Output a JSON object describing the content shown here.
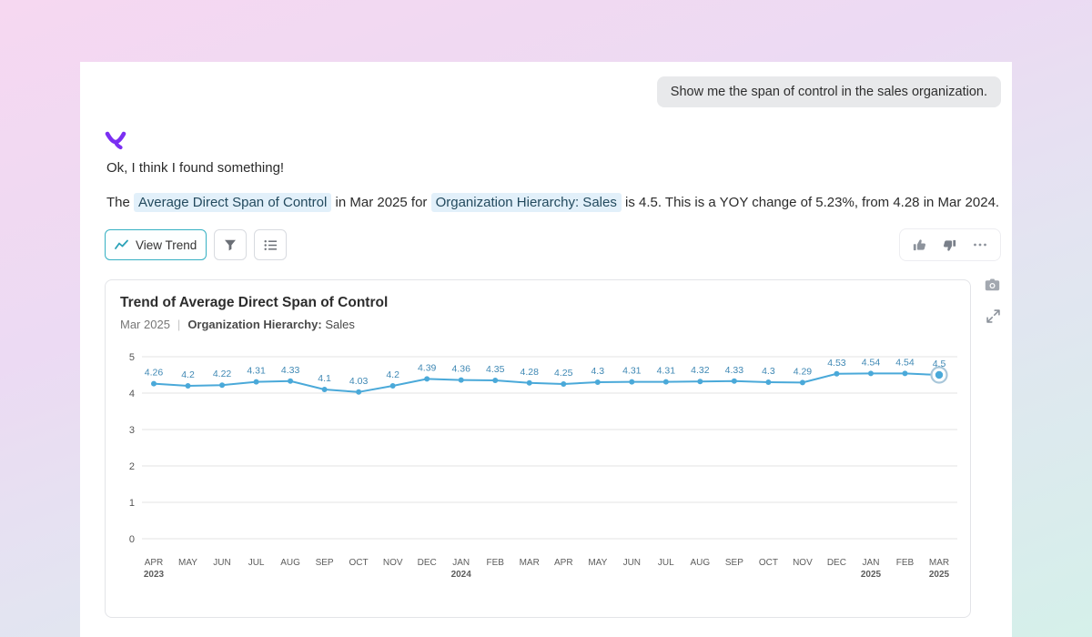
{
  "chat": {
    "user_message": "Show me the span of control in the sales organization."
  },
  "assistant": {
    "intro": "Ok, I think I found something!",
    "sentence": {
      "part1": "The ",
      "highlight1": "Average Direct Span of Control",
      "part2": " in Mar 2025 for ",
      "highlight2": "Organization Hierarchy: Sales",
      "part3": " is 4.5. This is a YOY change of 5.23%, from 4.28 in Mar 2024."
    }
  },
  "toolbar": {
    "view_trend_label": "View Trend",
    "icons": [
      "trend-line-icon",
      "filter-icon",
      "list-icon",
      "thumbs-up-icon",
      "thumbs-down-icon",
      "ellipsis-icon"
    ]
  },
  "chart_card": {
    "title": "Trend of Average Direct Span of Control",
    "period": "Mar 2025",
    "separator": "|",
    "filter_label": "Organization Hierarchy:",
    "filter_value": "Sales"
  },
  "side_icons": [
    "camera-icon",
    "expand-icon"
  ],
  "colors": {
    "line": "#4aa9d9",
    "value_label": "#3f88b4",
    "accent_teal": "#35b0c3",
    "logo_purple": "#7b2ff2",
    "chip_bg": "#e2f0fa"
  },
  "chart_data": {
    "type": "line",
    "title": "Trend of Average Direct Span of Control",
    "categories": [
      "APR",
      "MAY",
      "JUN",
      "JUL",
      "AUG",
      "SEP",
      "OCT",
      "NOV",
      "DEC",
      "JAN",
      "FEB",
      "MAR",
      "APR",
      "MAY",
      "JUN",
      "JUL",
      "AUG",
      "SEP",
      "OCT",
      "NOV",
      "DEC",
      "JAN",
      "FEB",
      "MAR"
    ],
    "year_labels": [
      "2023",
      "",
      "",
      "",
      "",
      "",
      "",
      "",
      "",
      "2024",
      "",
      "",
      "",
      "",
      "",
      "",
      "",
      "",
      "",
      "",
      "",
      "2025",
      "",
      "2025"
    ],
    "values": [
      4.26,
      4.2,
      4.22,
      4.31,
      4.33,
      4.1,
      4.03,
      4.2,
      4.39,
      4.36,
      4.35,
      4.28,
      4.25,
      4.3,
      4.31,
      4.31,
      4.32,
      4.33,
      4.3,
      4.29,
      4.53,
      4.54,
      4.54,
      4.5
    ],
    "ylim": [
      0,
      5
    ],
    "yticks": [
      0,
      1,
      2,
      3,
      4,
      5
    ],
    "grid": true,
    "legend": "none",
    "line_color": "#4aa9d9",
    "selected_index": 23
  }
}
